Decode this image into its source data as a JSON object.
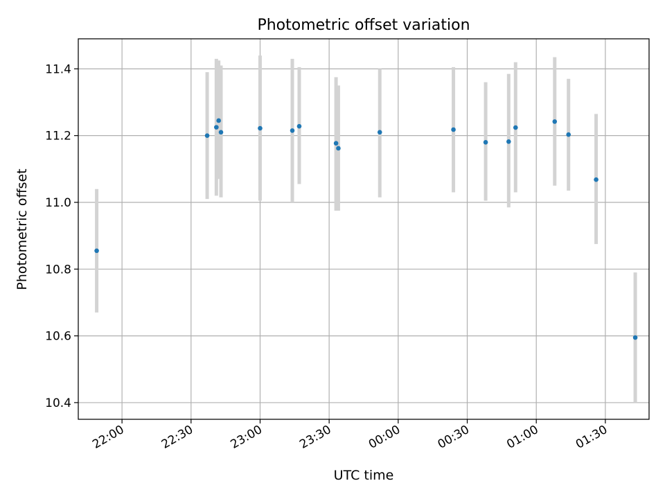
{
  "chart_data": {
    "type": "scatter",
    "title": "Photometric offset variation",
    "xlabel": "UTC time",
    "ylabel": "Photometric offset",
    "x_axis_kind": "time",
    "xlim": [
      "21:41",
      "01:49"
    ],
    "ylim": [
      10.35,
      11.49
    ],
    "grid": true,
    "x_ticks": [
      {
        "value": "22:00",
        "label": "22:00"
      },
      {
        "value": "22:30",
        "label": "22:30"
      },
      {
        "value": "23:00",
        "label": "23:00"
      },
      {
        "value": "23:30",
        "label": "23:30"
      },
      {
        "value": "00:00",
        "label": "00:00"
      },
      {
        "value": "00:30",
        "label": "00:30"
      },
      {
        "value": "01:00",
        "label": "01:00"
      },
      {
        "value": "01:30",
        "label": "01:30"
      }
    ],
    "y_ticks": [
      10.4,
      10.6,
      10.8,
      11.0,
      11.2,
      11.4
    ],
    "y_tick_labels": [
      "10.4",
      "10.6",
      "10.8",
      "11.0",
      "11.2",
      "11.4"
    ],
    "marker_color": "#1f77b4",
    "errorbar_color": "#d3d3d3",
    "points": [
      {
        "x": "21:49",
        "y": 10.855,
        "ylow": 10.67,
        "yhigh": 11.04
      },
      {
        "x": "22:37",
        "y": 11.2,
        "ylow": 11.01,
        "yhigh": 11.39
      },
      {
        "x": "22:41",
        "y": 11.225,
        "ylow": 11.02,
        "yhigh": 11.43
      },
      {
        "x": "22:42",
        "y": 11.245,
        "ylow": 11.07,
        "yhigh": 11.425
      },
      {
        "x": "22:43",
        "y": 11.21,
        "ylow": 11.015,
        "yhigh": 11.41
      },
      {
        "x": "23:00",
        "y": 11.222,
        "ylow": 11.005,
        "yhigh": 11.44
      },
      {
        "x": "23:14",
        "y": 11.215,
        "ylow": 11.0,
        "yhigh": 11.43
      },
      {
        "x": "23:17",
        "y": 11.228,
        "ylow": 11.055,
        "yhigh": 11.405
      },
      {
        "x": "23:33",
        "y": 11.177,
        "ylow": 10.975,
        "yhigh": 11.375
      },
      {
        "x": "23:34",
        "y": 11.162,
        "ylow": 10.975,
        "yhigh": 11.35
      },
      {
        "x": "23:52",
        "y": 11.21,
        "ylow": 11.015,
        "yhigh": 11.4
      },
      {
        "x": "00:24",
        "y": 11.218,
        "ylow": 11.03,
        "yhigh": 11.405
      },
      {
        "x": "00:38",
        "y": 11.18,
        "ylow": 11.005,
        "yhigh": 11.36
      },
      {
        "x": "00:48",
        "y": 11.182,
        "ylow": 10.985,
        "yhigh": 11.385
      },
      {
        "x": "00:51",
        "y": 11.224,
        "ylow": 11.03,
        "yhigh": 11.42
      },
      {
        "x": "01:08",
        "y": 11.242,
        "ylow": 11.05,
        "yhigh": 11.435
      },
      {
        "x": "01:14",
        "y": 11.203,
        "ylow": 11.035,
        "yhigh": 11.37
      },
      {
        "x": "01:26",
        "y": 11.068,
        "ylow": 10.875,
        "yhigh": 11.265
      },
      {
        "x": "01:43",
        "y": 10.595,
        "ylow": 10.4,
        "yhigh": 10.79
      }
    ]
  }
}
